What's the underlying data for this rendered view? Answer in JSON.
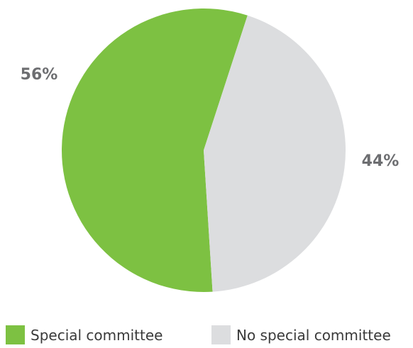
{
  "chart_data": {
    "type": "pie",
    "categories": [
      "Special committee",
      "No special committee"
    ],
    "values": [
      56,
      44
    ],
    "labels": [
      "56%",
      "44%"
    ],
    "colors": [
      "#7dc142",
      "#dcdddf"
    ],
    "start_angle_deg": 18,
    "direction": "counterclockwise",
    "legend": "bottom"
  }
}
